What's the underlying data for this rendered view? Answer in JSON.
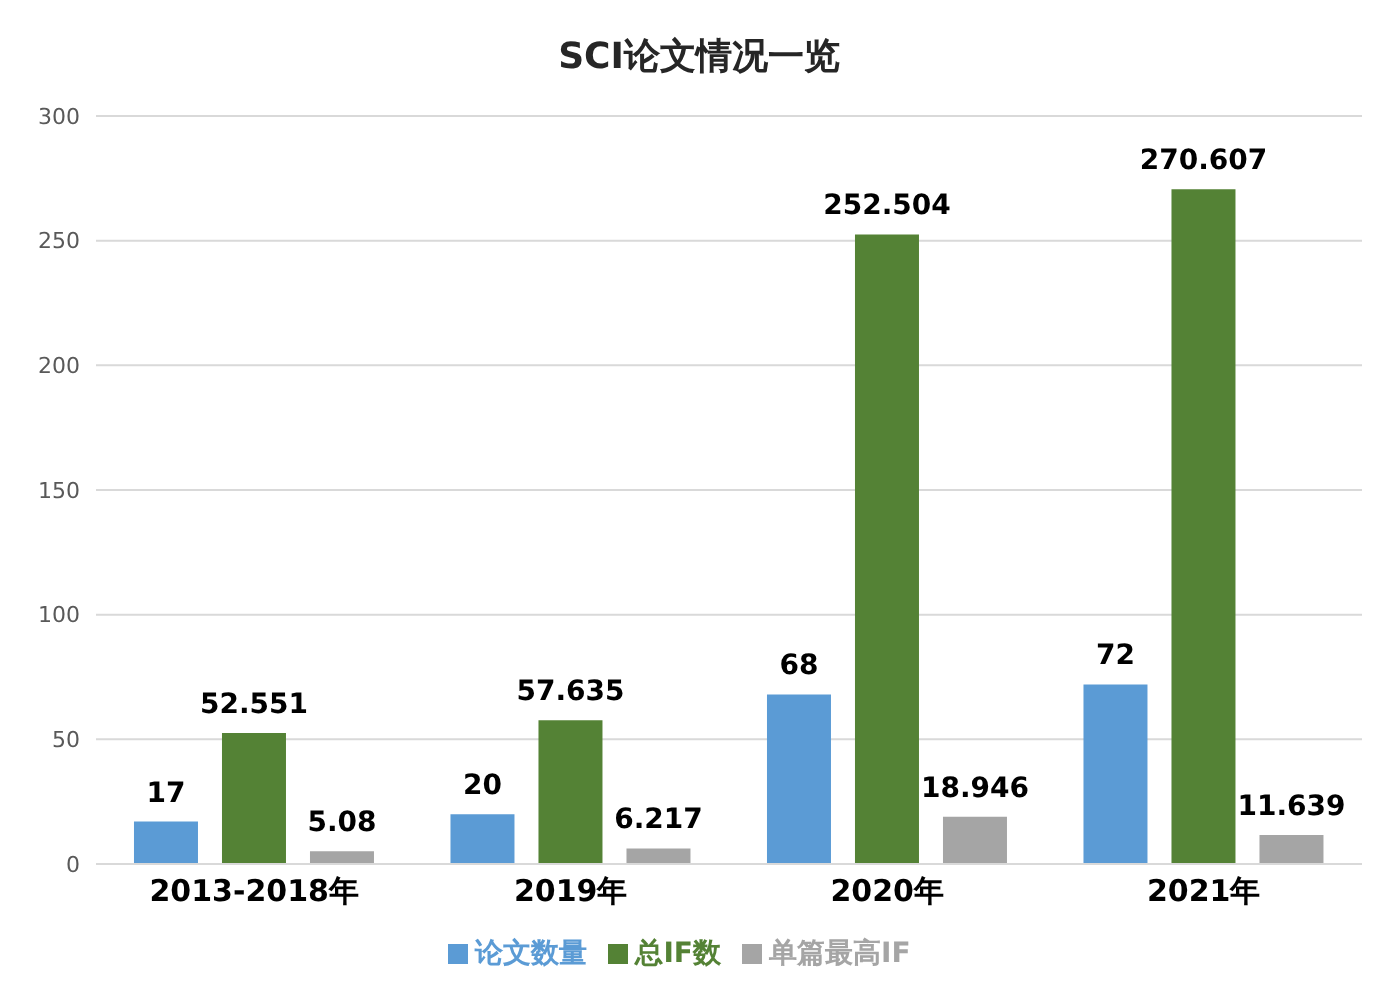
{
  "chart_data": {
    "type": "bar",
    "title": "SCI论文情况一览",
    "categories": [
      "2013-2018年",
      "2019年",
      "2020年",
      "2021年"
    ],
    "series": [
      {
        "name": "论文数量",
        "color": "#5b9bd5",
        "values": [
          17,
          20,
          68,
          72
        ]
      },
      {
        "name": "总IF数",
        "color": "#548235",
        "values": [
          52.551,
          57.635,
          252.504,
          270.607
        ]
      },
      {
        "name": "单篇最高IF",
        "color": "#a5a5a5",
        "values": [
          5.08,
          6.217,
          18.946,
          11.639
        ]
      }
    ],
    "ylim": [
      0,
      300
    ],
    "yticks": [
      0,
      50,
      100,
      150,
      200,
      250,
      300
    ],
    "grid": "y",
    "legend": "bottom",
    "data_labels": true
  }
}
